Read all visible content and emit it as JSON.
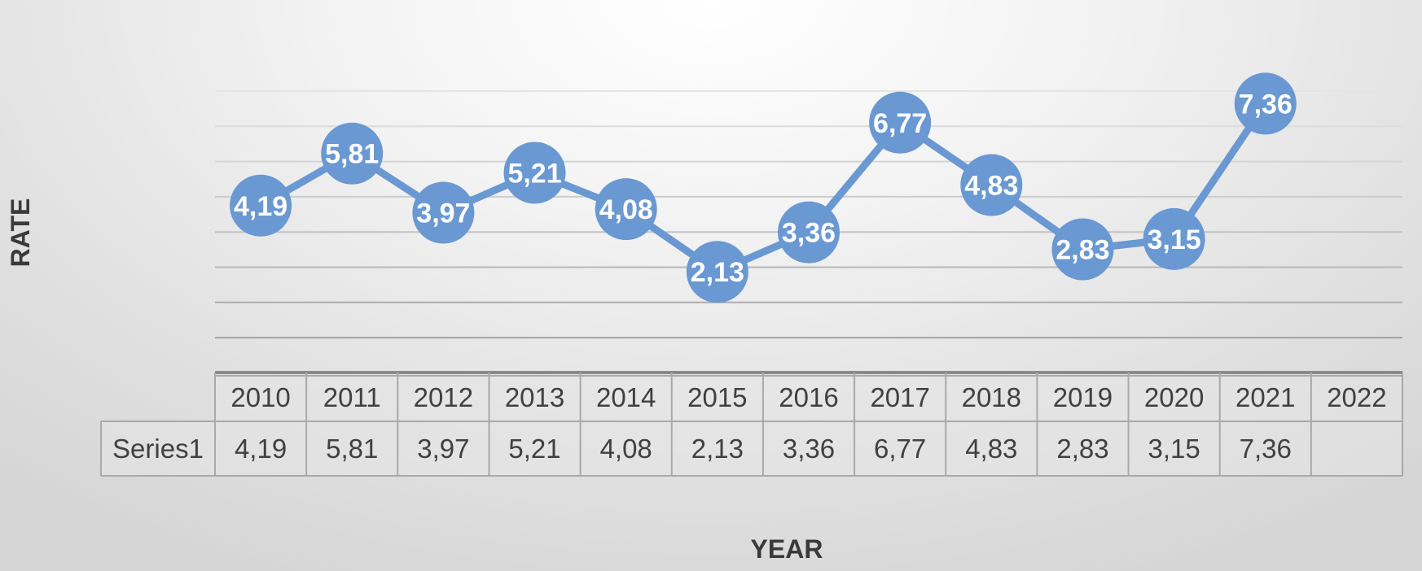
{
  "chart_data": {
    "type": "line",
    "categories": [
      "2010",
      "2011",
      "2012",
      "2013",
      "2014",
      "2015",
      "2016",
      "2017",
      "2018",
      "2019",
      "2020",
      "2021",
      "2022"
    ],
    "series": [
      {
        "name": "Series1",
        "values": [
          4.19,
          5.81,
          3.97,
          5.21,
          4.08,
          2.13,
          3.36,
          6.77,
          4.83,
          2.83,
          3.15,
          7.36,
          null
        ],
        "labels": [
          "4,19",
          "5,81",
          "3,97",
          "5,21",
          "4,08",
          "2,13",
          "3,36",
          "6,77",
          "4,83",
          "2,83",
          "3,15",
          "7,36",
          ""
        ]
      }
    ],
    "xlabel": "YEAR",
    "ylabel": "RATE",
    "ylim": [
      -1,
      7.75
    ],
    "grid": true,
    "data_table": true,
    "colors": {
      "series": "#6a98d2",
      "label_text": "#ffffff",
      "axis_title": "#3a3a3a",
      "table_text": "#404040",
      "table_border": "#a9a9a9",
      "table_fill": "#e6e6e6"
    }
  }
}
